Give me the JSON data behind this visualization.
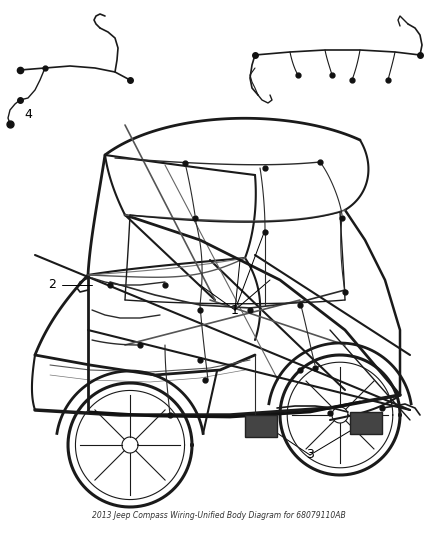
{
  "title": "2013 Jeep Compass Wiring-Unified Body Diagram for 68079110AB",
  "background_color": "#ffffff",
  "fig_width": 4.38,
  "fig_height": 5.33,
  "dpi": 100,
  "car_color": "#1a1a1a",
  "wire_color": "#2a2a2a",
  "label_color": "#000000",
  "label_fontsize": 9,
  "title_fontsize": 5.5,
  "title_color": "#333333"
}
